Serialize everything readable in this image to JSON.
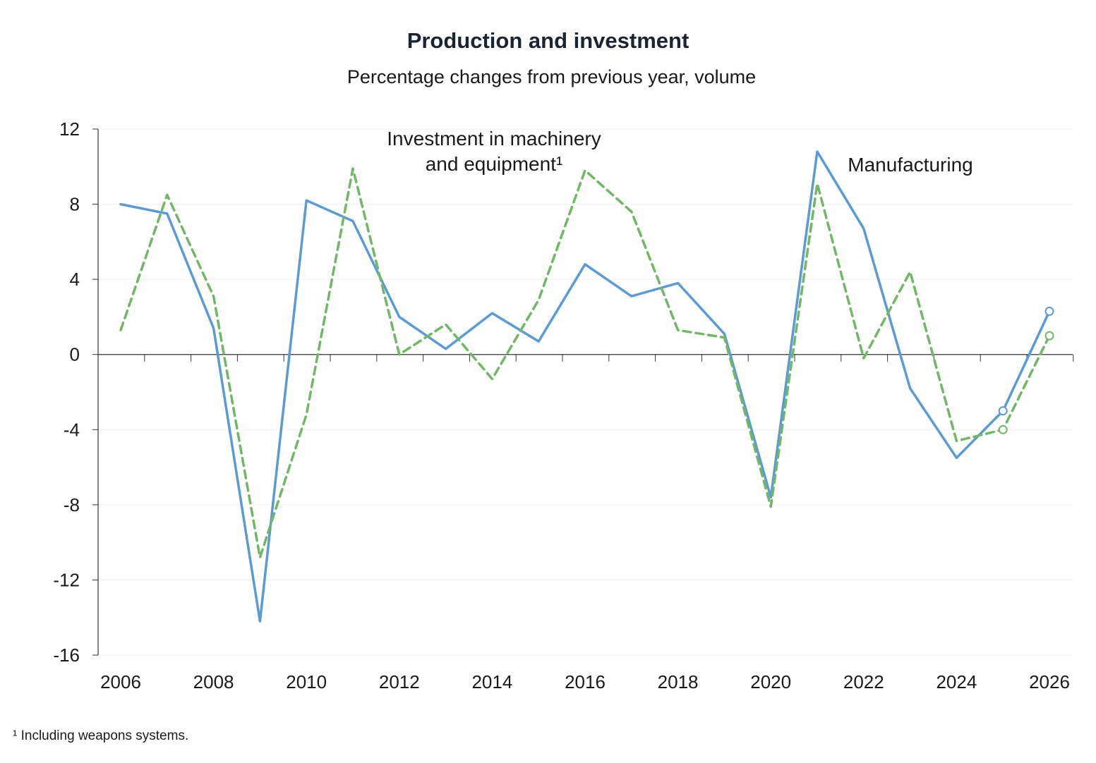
{
  "chart_data": {
    "type": "line",
    "title": "Production and investment",
    "subtitle": "Percentage changes from previous year, volume",
    "footnote": "¹ Including weapons systems.",
    "x": [
      2006,
      2007,
      2008,
      2009,
      2010,
      2011,
      2012,
      2013,
      2014,
      2015,
      2016,
      2017,
      2018,
      2019,
      2020,
      2021,
      2022,
      2023,
      2024,
      2025,
      2026
    ],
    "x_ticks": [
      "2006",
      "2008",
      "2010",
      "2012",
      "2014",
      "2016",
      "2018",
      "2020",
      "2022",
      "2024",
      "2026"
    ],
    "ylim": [
      -16,
      12
    ],
    "y_ticks": [
      12,
      8,
      4,
      0,
      -4,
      -8,
      -12,
      -16
    ],
    "y_tick_labels": [
      "12",
      "8",
      "4",
      "0",
      "-4",
      "-8",
      "-12",
      "-16"
    ],
    "grid": true,
    "series": [
      {
        "name": "Manufacturing",
        "label_lines": [
          "Manufacturing"
        ],
        "color": "#5b9bd5",
        "style": "solid",
        "values": [
          8.0,
          7.5,
          1.4,
          -14.2,
          8.2,
          7.1,
          2.0,
          0.3,
          2.2,
          0.7,
          4.8,
          3.1,
          3.8,
          1.1,
          -7.6,
          10.8,
          6.7,
          -1.8,
          -5.5,
          -3.0,
          2.3
        ],
        "forecast_from": 2025
      },
      {
        "name": "Investment in machinery and equipment¹",
        "label_lines": [
          "Investment in machinery",
          "and equipment¹"
        ],
        "color": "#70b865",
        "style": "dashed",
        "values": [
          1.3,
          8.5,
          3.1,
          -10.8,
          -3.2,
          9.9,
          0.0,
          1.6,
          -1.3,
          2.9,
          9.8,
          7.6,
          1.3,
          0.9,
          -8.1,
          9.1,
          -0.2,
          4.4,
          -4.6,
          -4.0,
          1.0
        ],
        "forecast_from": 2025
      }
    ]
  }
}
